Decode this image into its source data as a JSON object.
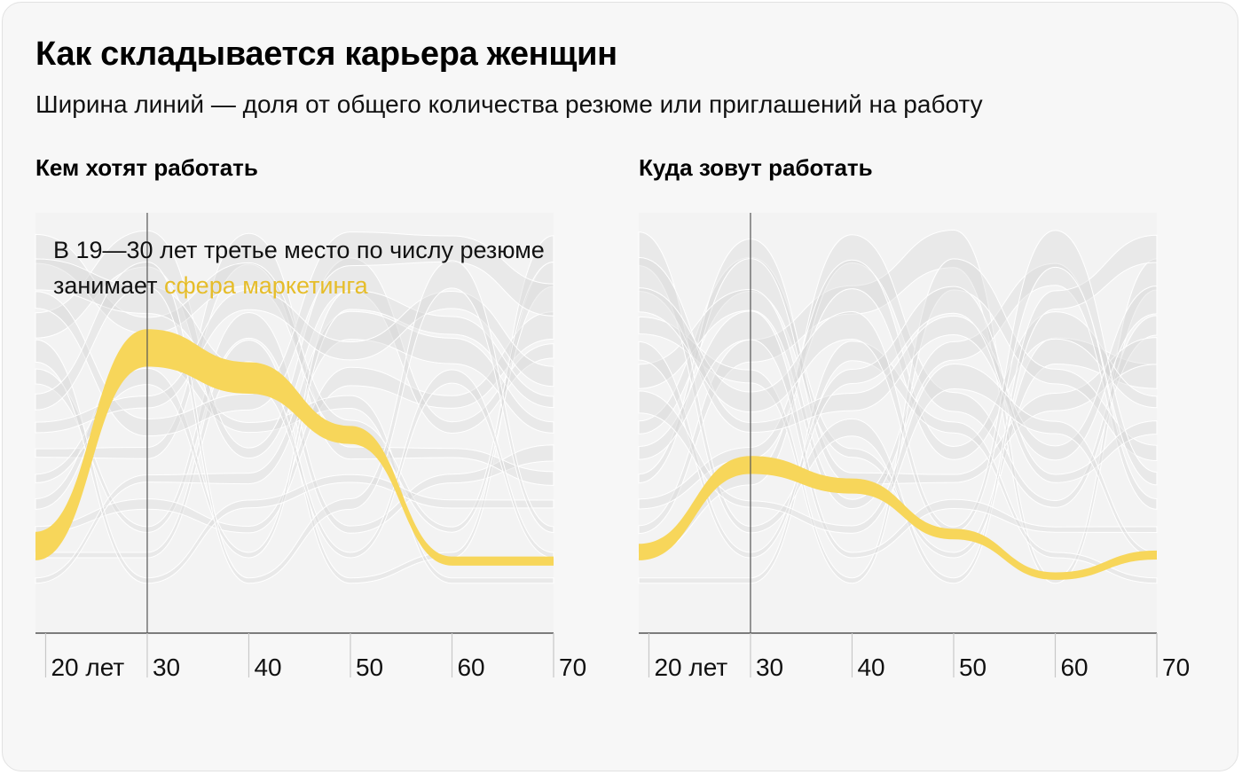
{
  "title": "Как складывается карьера женщин",
  "subtitle": "Ширина линий — доля от общего количества резюме или приглашений на работу",
  "colors": {
    "highlight": "#f7d65a",
    "highlight_text": "#e6bd2a",
    "background_flow": "#d4d4d4",
    "axis": "#555555"
  },
  "chart_data": [
    {
      "type": "area",
      "title": "Кем хотят работать",
      "x_ticks": [
        20,
        30,
        40,
        50,
        60,
        70
      ],
      "x_tick_labels": [
        "20 лет",
        "30",
        "40",
        "50",
        "60",
        "70"
      ],
      "xlim": [
        19,
        70
      ],
      "marker_x": 30,
      "ylim_rank": [
        0,
        14
      ],
      "annotation": {
        "text": "В 19—30 лет третье место по числу резюме занимает ",
        "highlight": "сфера маркетинга"
      },
      "highlight_series": {
        "name": "сфера маркетинга",
        "ages": [
          19,
          30,
          40,
          50,
          60,
          70
        ],
        "rank_position": [
          11.1,
          4.5,
          5.5,
          7.4,
          11.6,
          11.6
        ],
        "share_width": [
          0.95,
          1.25,
          1.05,
          0.6,
          0.3,
          0.3
        ]
      }
    },
    {
      "type": "area",
      "title": "Куда зовут работать",
      "x_ticks": [
        20,
        30,
        40,
        50,
        60,
        70
      ],
      "x_tick_labels": [
        "20 лет",
        "30",
        "40",
        "50",
        "60",
        "70"
      ],
      "xlim": [
        19,
        70
      ],
      "marker_x": 30,
      "ylim_rank": [
        0,
        14
      ],
      "highlight_series": {
        "name": "сфера маркетинга",
        "ages": [
          19,
          30,
          40,
          50,
          60,
          70
        ],
        "rank_position": [
          11.3,
          8.4,
          9.1,
          10.7,
          12.1,
          11.4
        ],
        "share_width": [
          0.55,
          0.6,
          0.5,
          0.35,
          0.25,
          0.3
        ]
      }
    }
  ]
}
